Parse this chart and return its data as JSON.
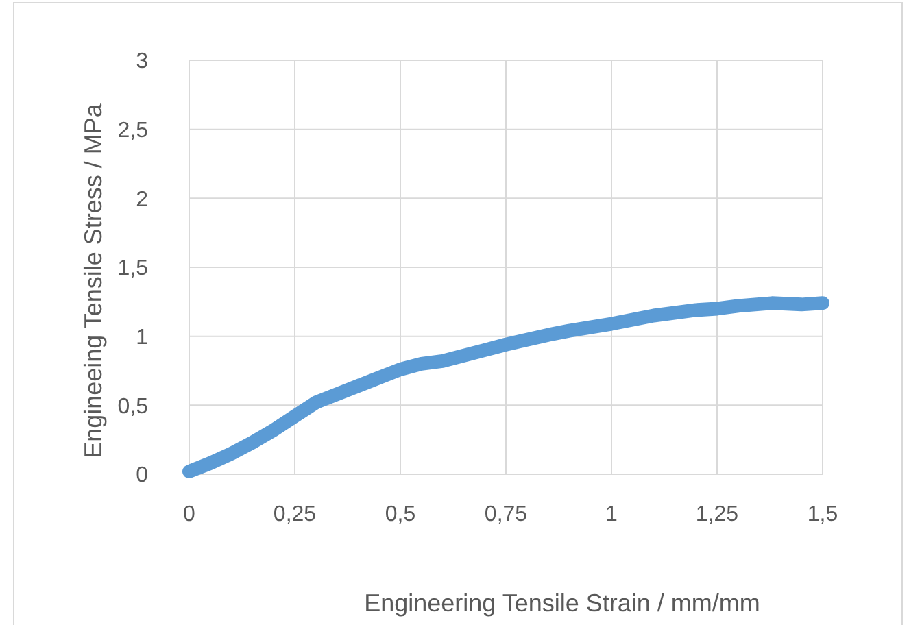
{
  "chart_data": {
    "type": "line",
    "xlabel": "Engineering Tensile Strain / mm/mm",
    "ylabel": "Engineeing Tensile Stress / MPa",
    "x": [
      0,
      0.05,
      0.1,
      0.15,
      0.2,
      0.25,
      0.3,
      0.4,
      0.5,
      0.55,
      0.6,
      0.7,
      0.75,
      0.85,
      0.9,
      1,
      1.1,
      1.2,
      1.25,
      1.3,
      1.38,
      1.45,
      1.5
    ],
    "series": [
      {
        "color": "#5b9bd5",
        "values": [
          0.02,
          0.08,
          0.15,
          0.23,
          0.32,
          0.42,
          0.52,
          0.64,
          0.76,
          0.8,
          0.82,
          0.9,
          0.94,
          1.01,
          1.04,
          1.09,
          1.15,
          1.19,
          1.2,
          1.22,
          1.24,
          1.23,
          1.24
        ]
      }
    ],
    "xlim": [
      0,
      1.5
    ],
    "ylim": [
      0,
      3
    ],
    "xticks": [
      0,
      {
        "value": 0.25,
        "label": "0,25"
      },
      {
        "value": 0.5,
        "label": "0,5"
      },
      {
        "value": 0.75,
        "label": "0,75"
      },
      1,
      {
        "value": 1.25,
        "label": "1,25"
      },
      {
        "value": 1.5,
        "label": "1,5"
      }
    ],
    "yticks": [
      0,
      {
        "value": 0.5,
        "label": "0,5"
      },
      1,
      {
        "value": 1.5,
        "label": "1,5"
      },
      2,
      {
        "value": 2.5,
        "label": "2,5"
      },
      3
    ],
    "grid": true,
    "marker": "none",
    "line_style": "solid"
  }
}
